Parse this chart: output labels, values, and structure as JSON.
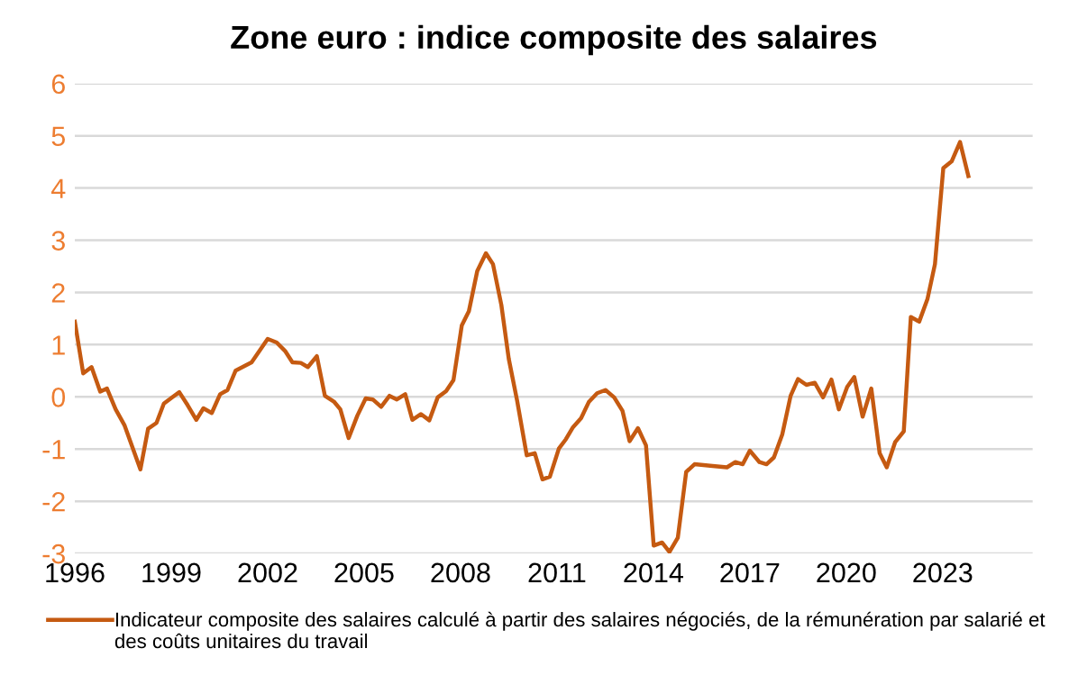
{
  "chart_data": {
    "type": "line",
    "title": "Zone euro : indice composite des salaires",
    "x": [
      1996.0,
      1996.26,
      1996.52,
      1996.79,
      1997.0,
      1997.27,
      1997.55,
      1998.04,
      1998.28,
      1998.54,
      1998.77,
      1999.07,
      1999.25,
      1999.51,
      1999.78,
      2000.0,
      2000.26,
      2000.52,
      2000.75,
      2001.0,
      2001.5,
      2002.0,
      2002.28,
      2002.54,
      2002.77,
      2003.03,
      2003.25,
      2003.53,
      2003.78,
      2004.06,
      2004.26,
      2004.52,
      2004.79,
      2005.05,
      2005.27,
      2005.53,
      2005.79,
      2006.02,
      2006.28,
      2006.5,
      2006.77,
      2007.03,
      2007.29,
      2007.55,
      2007.78,
      2008.04,
      2008.26,
      2008.52,
      2008.79,
      2009.01,
      2009.27,
      2009.5,
      2009.76,
      2010.06,
      2010.31,
      2010.55,
      2010.78,
      2011.06,
      2011.28,
      2011.5,
      2011.75,
      2011.99,
      2012.25,
      2012.51,
      2012.78,
      2013.04,
      2013.26,
      2013.52,
      2013.77,
      2014.01,
      2014.27,
      2014.5,
      2014.76,
      2015.02,
      2015.28,
      2015.77,
      2016.29,
      2016.55,
      2016.78,
      2017.0,
      2017.3,
      2017.52,
      2017.75,
      2018.01,
      2018.27,
      2018.5,
      2018.76,
      2019.02,
      2019.28,
      2019.54,
      2019.77,
      2020.03,
      2020.25,
      2020.51,
      2020.78,
      2021.04,
      2021.26,
      2021.52,
      2021.79,
      2022.01,
      2022.27,
      2022.53,
      2022.76,
      2023.02,
      2023.28,
      2023.54,
      2023.8
    ],
    "series": [
      {
        "name": "Indicateur composite des salaires calculé à partir des salaires négociés, de la rémunération par salarié et des coûts unitaires du travail",
        "color": "#c55a11",
        "values": [
          1.44,
          0.45,
          0.57,
          0.1,
          0.16,
          -0.24,
          -0.55,
          -1.39,
          -0.61,
          -0.5,
          -0.13,
          0.01,
          0.09,
          -0.16,
          -0.44,
          -0.22,
          -0.31,
          0.05,
          0.13,
          0.5,
          0.66,
          1.11,
          1.04,
          0.88,
          0.66,
          0.65,
          0.57,
          0.78,
          0.02,
          -0.09,
          -0.24,
          -0.79,
          -0.36,
          -0.03,
          -0.05,
          -0.19,
          0.02,
          -0.05,
          0.05,
          -0.44,
          -0.33,
          -0.45,
          -0.01,
          0.11,
          0.32,
          1.37,
          1.64,
          2.41,
          2.75,
          2.54,
          1.76,
          0.73,
          -0.07,
          -1.12,
          -1.08,
          -1.58,
          -1.53,
          -0.99,
          -0.81,
          -0.58,
          -0.41,
          -0.1,
          0.07,
          0.13,
          -0.01,
          -0.27,
          -0.85,
          -0.6,
          -0.93,
          -2.85,
          -2.79,
          -2.97,
          -2.7,
          -1.44,
          -1.29,
          -1.32,
          -1.35,
          -1.25,
          -1.29,
          -1.03,
          -1.25,
          -1.29,
          -1.16,
          -0.72,
          0.02,
          0.34,
          0.23,
          0.27,
          -0.01,
          0.33,
          -0.24,
          0.19,
          0.38,
          -0.38,
          0.16,
          -1.08,
          -1.35,
          -0.87,
          -0.66,
          1.53,
          1.44,
          1.88,
          2.54,
          4.38,
          4.51,
          4.88,
          4.23
        ]
      }
    ],
    "xlim": [
      1996,
      2025.8
    ],
    "xticks": [
      1996,
      1999,
      2002,
      2005,
      2008,
      2011,
      2014,
      2017,
      2020,
      2023
    ],
    "ylim": [
      -3,
      6
    ],
    "yticks": [
      -3,
      -2,
      -1,
      0,
      1,
      2,
      3,
      4,
      5,
      6
    ],
    "grid": "y",
    "legend": "bottom"
  }
}
